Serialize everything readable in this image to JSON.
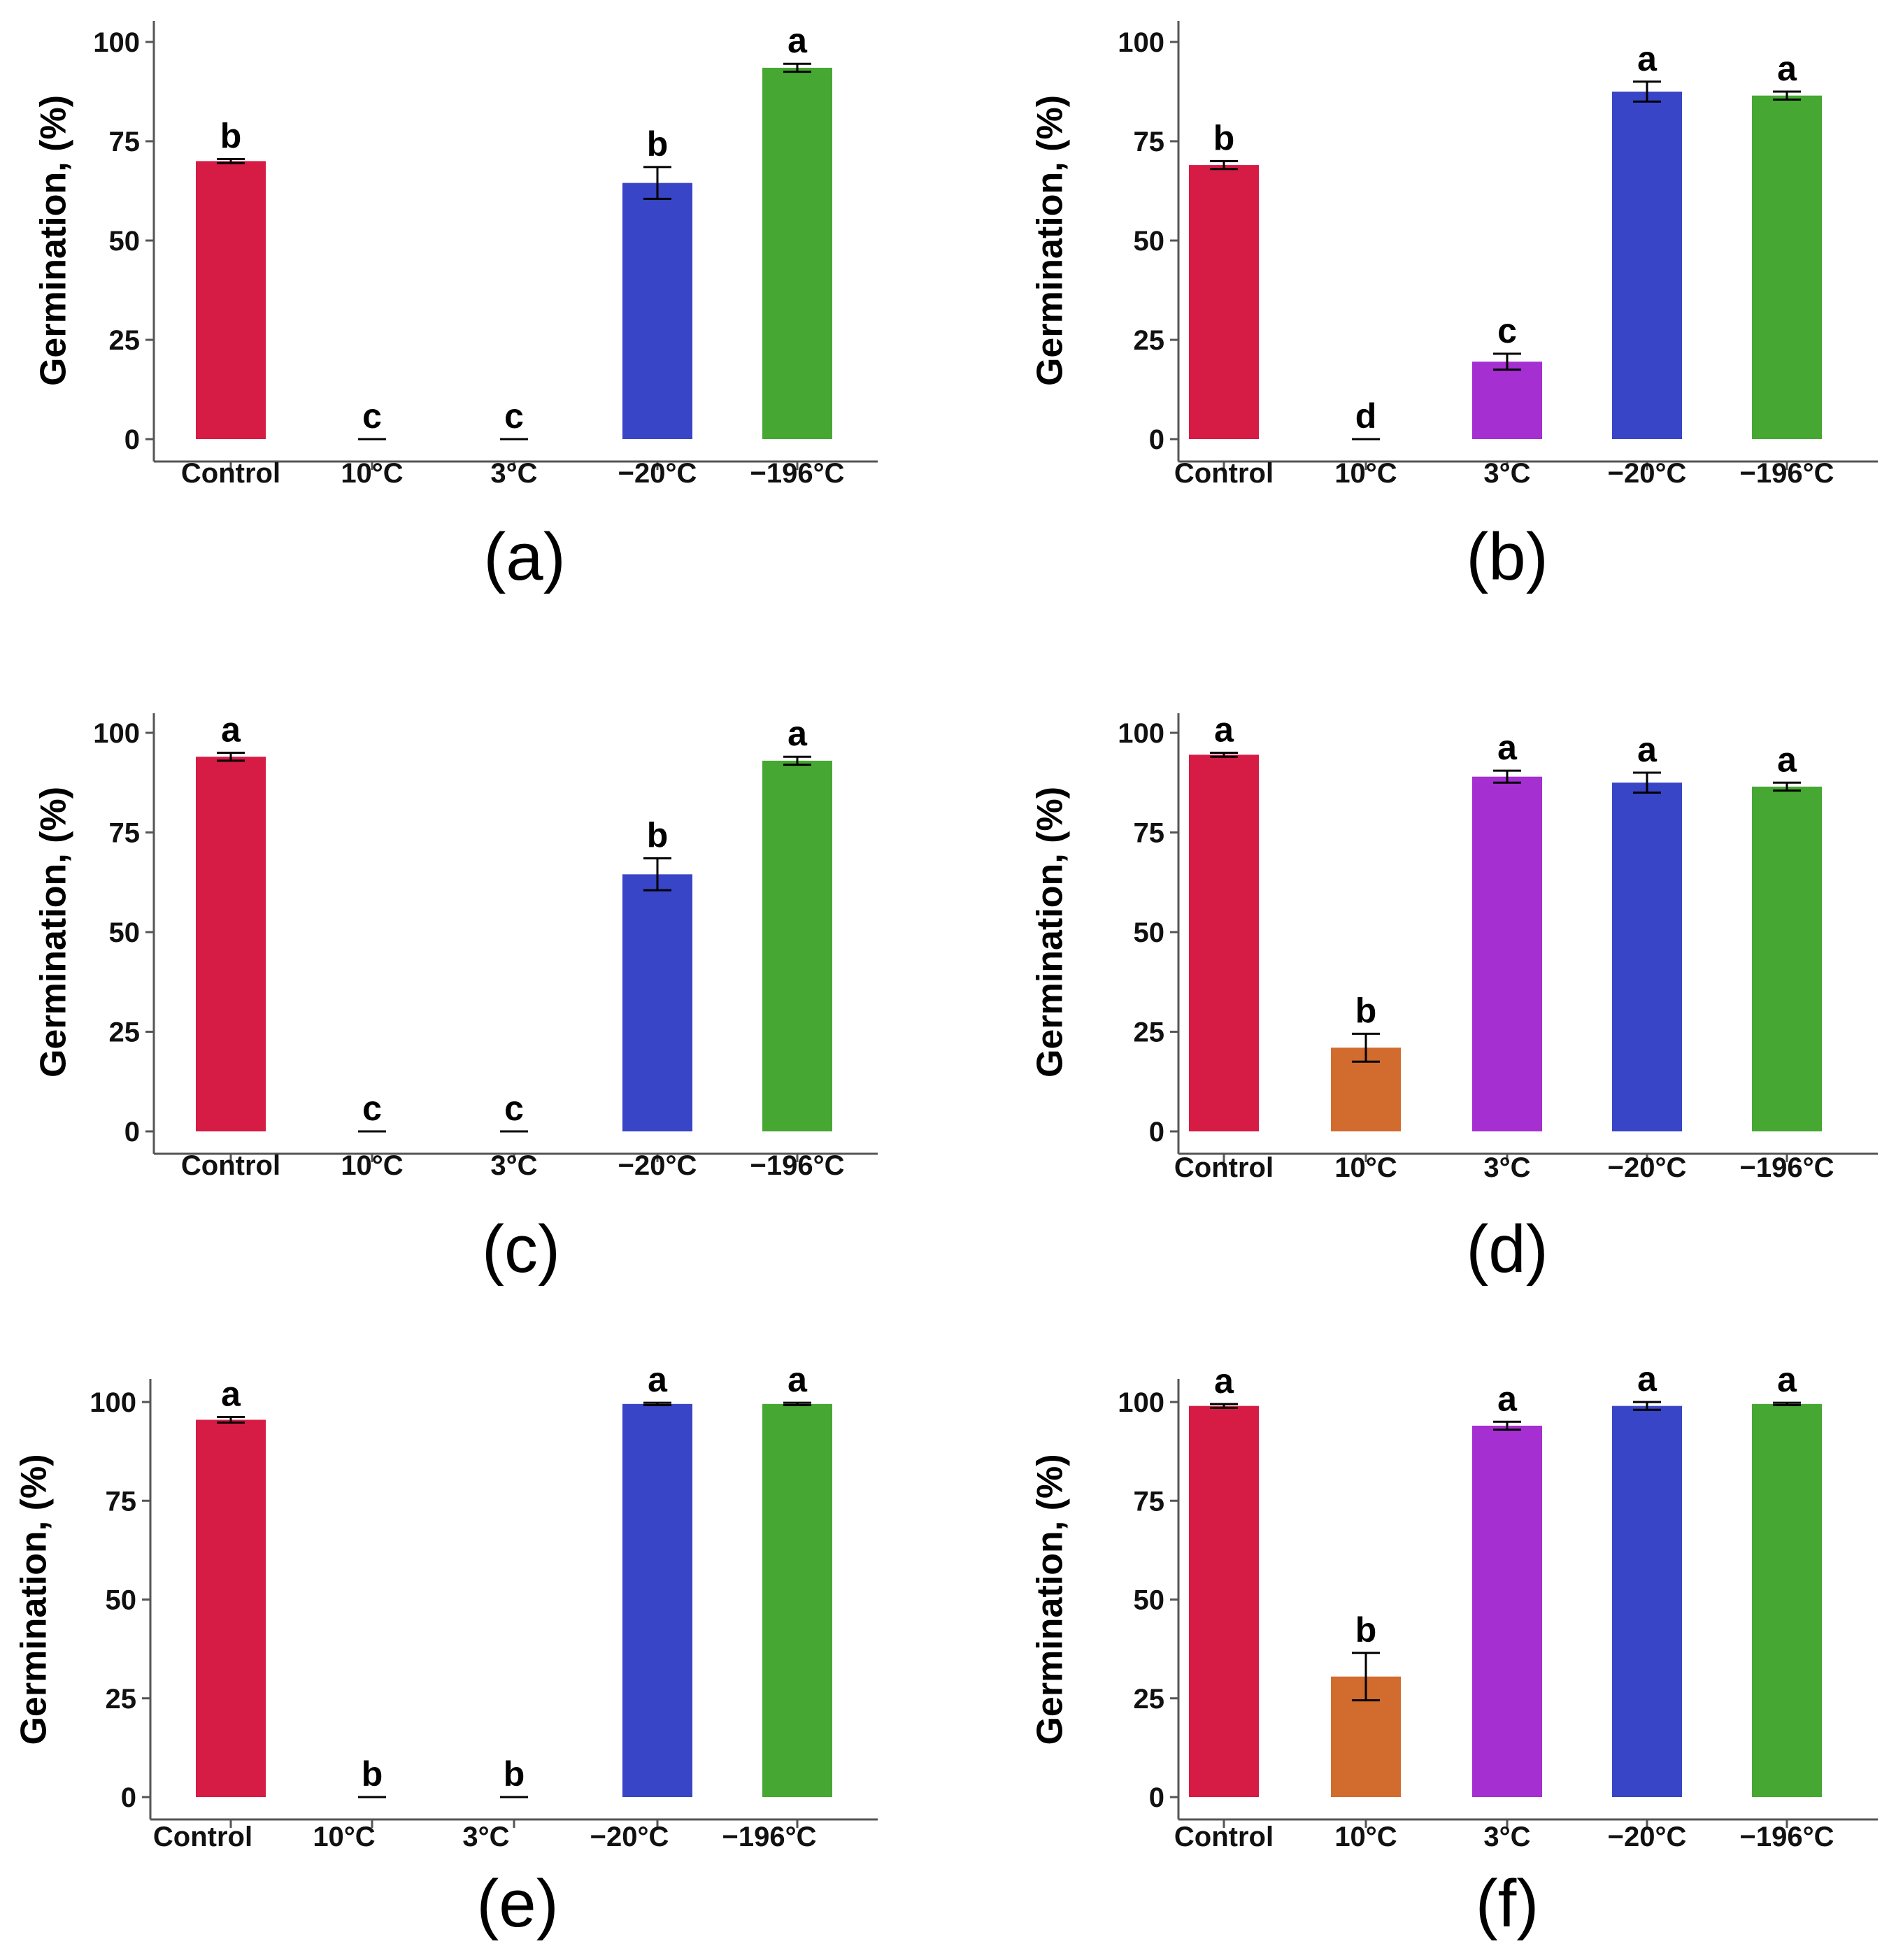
{
  "figure": {
    "panels": [
      {
        "label": "(a)",
        "chart_data": {
          "type": "bar",
          "title": "",
          "xlabel": "",
          "ylabel": "Germination, (%)",
          "ylim": [
            0,
            100
          ],
          "yticks": [
            "0",
            "25",
            "50",
            "75",
            "100"
          ],
          "categories": [
            "Control",
            "10°C",
            "3°C",
            "−20°C",
            "−196°C"
          ],
          "values": [
            70,
            0,
            0,
            64.5,
            93.5
          ],
          "errors": [
            0.5,
            0,
            0,
            4,
            1
          ],
          "letters": [
            "b",
            "c",
            "c",
            "b",
            "a"
          ],
          "colors": [
            "#d61b45",
            "#d26b2e",
            "#a52fd0",
            "#3845c6",
            "#46a832"
          ]
        }
      },
      {
        "label": "(b)",
        "chart_data": {
          "type": "bar",
          "title": "",
          "xlabel": "",
          "ylabel": "Germination, (%)",
          "ylim": [
            0,
            100
          ],
          "yticks": [
            "0",
            "25",
            "50",
            "75",
            "100"
          ],
          "categories": [
            "Control",
            "10°C",
            "3°C",
            "−20°C",
            "−196°C"
          ],
          "values": [
            69,
            0,
            19.5,
            87.5,
            86.5
          ],
          "errors": [
            1,
            0,
            2,
            2.5,
            1
          ],
          "letters": [
            "b",
            "d",
            "c",
            "a",
            "a"
          ],
          "colors": [
            "#d61b45",
            "#d26b2e",
            "#a52fd0",
            "#3845c6",
            "#46a832"
          ]
        }
      },
      {
        "label": "(c)",
        "chart_data": {
          "type": "bar",
          "title": "",
          "xlabel": "",
          "ylabel": "Germination, (%)",
          "ylim": [
            0,
            100
          ],
          "yticks": [
            "0",
            "25",
            "50",
            "75",
            "100"
          ],
          "categories": [
            "Control",
            "10°C",
            "3°C",
            "−20°C",
            "−196°C"
          ],
          "values": [
            94,
            0,
            0,
            64.5,
            93
          ],
          "errors": [
            1,
            0,
            0,
            4,
            1
          ],
          "letters": [
            "a",
            "c",
            "c",
            "b",
            "a"
          ],
          "colors": [
            "#d61b45",
            "#d26b2e",
            "#a52fd0",
            "#3845c6",
            "#46a832"
          ]
        }
      },
      {
        "label": "(d)",
        "chart_data": {
          "type": "bar",
          "title": "",
          "xlabel": "",
          "ylabel": "Germination, (%)",
          "ylim": [
            0,
            100
          ],
          "yticks": [
            "0",
            "25",
            "50",
            "75",
            "100"
          ],
          "categories": [
            "Control",
            "10°C",
            "3°C",
            "−20°C",
            "−196°C"
          ],
          "values": [
            94.5,
            21,
            89,
            87.5,
            86.5
          ],
          "errors": [
            0.5,
            3.5,
            1.5,
            2.5,
            1
          ],
          "letters": [
            "a",
            "b",
            "a",
            "a",
            "a"
          ],
          "colors": [
            "#d61b45",
            "#d26b2e",
            "#a52fd0",
            "#3845c6",
            "#46a832"
          ]
        }
      },
      {
        "label": "(e)",
        "chart_data": {
          "type": "bar",
          "title": "",
          "xlabel": "",
          "ylabel": "Germination, (%)",
          "ylim": [
            0,
            100
          ],
          "yticks": [
            "0",
            "25",
            "50",
            "75",
            "100"
          ],
          "categories": [
            "Control",
            "10°C",
            "3°C",
            "−20°C",
            "−196°C"
          ],
          "values": [
            95.5,
            0,
            0,
            99.5,
            99.5
          ],
          "errors": [
            0.7,
            0,
            0,
            0.3,
            0.3
          ],
          "letters": [
            "a",
            "b",
            "b",
            "a",
            "a"
          ],
          "colors": [
            "#d61b45",
            "#d26b2e",
            "#a52fd0",
            "#3845c6",
            "#46a832"
          ]
        }
      },
      {
        "label": "(f)",
        "chart_data": {
          "type": "bar",
          "title": "",
          "xlabel": "",
          "ylabel": "Germination, (%)",
          "ylim": [
            0,
            100
          ],
          "yticks": [
            "0",
            "25",
            "50",
            "75",
            "100"
          ],
          "categories": [
            "Control",
            "10°C",
            "3°C",
            "−20°C",
            "−196°C"
          ],
          "values": [
            99,
            30.5,
            94,
            99,
            99.5
          ],
          "errors": [
            0.5,
            6,
            1,
            1,
            0.3
          ],
          "letters": [
            "a",
            "b",
            "a",
            "a",
            "a"
          ],
          "colors": [
            "#d61b45",
            "#d26b2e",
            "#a52fd0",
            "#3845c6",
            "#46a832"
          ]
        }
      }
    ]
  }
}
